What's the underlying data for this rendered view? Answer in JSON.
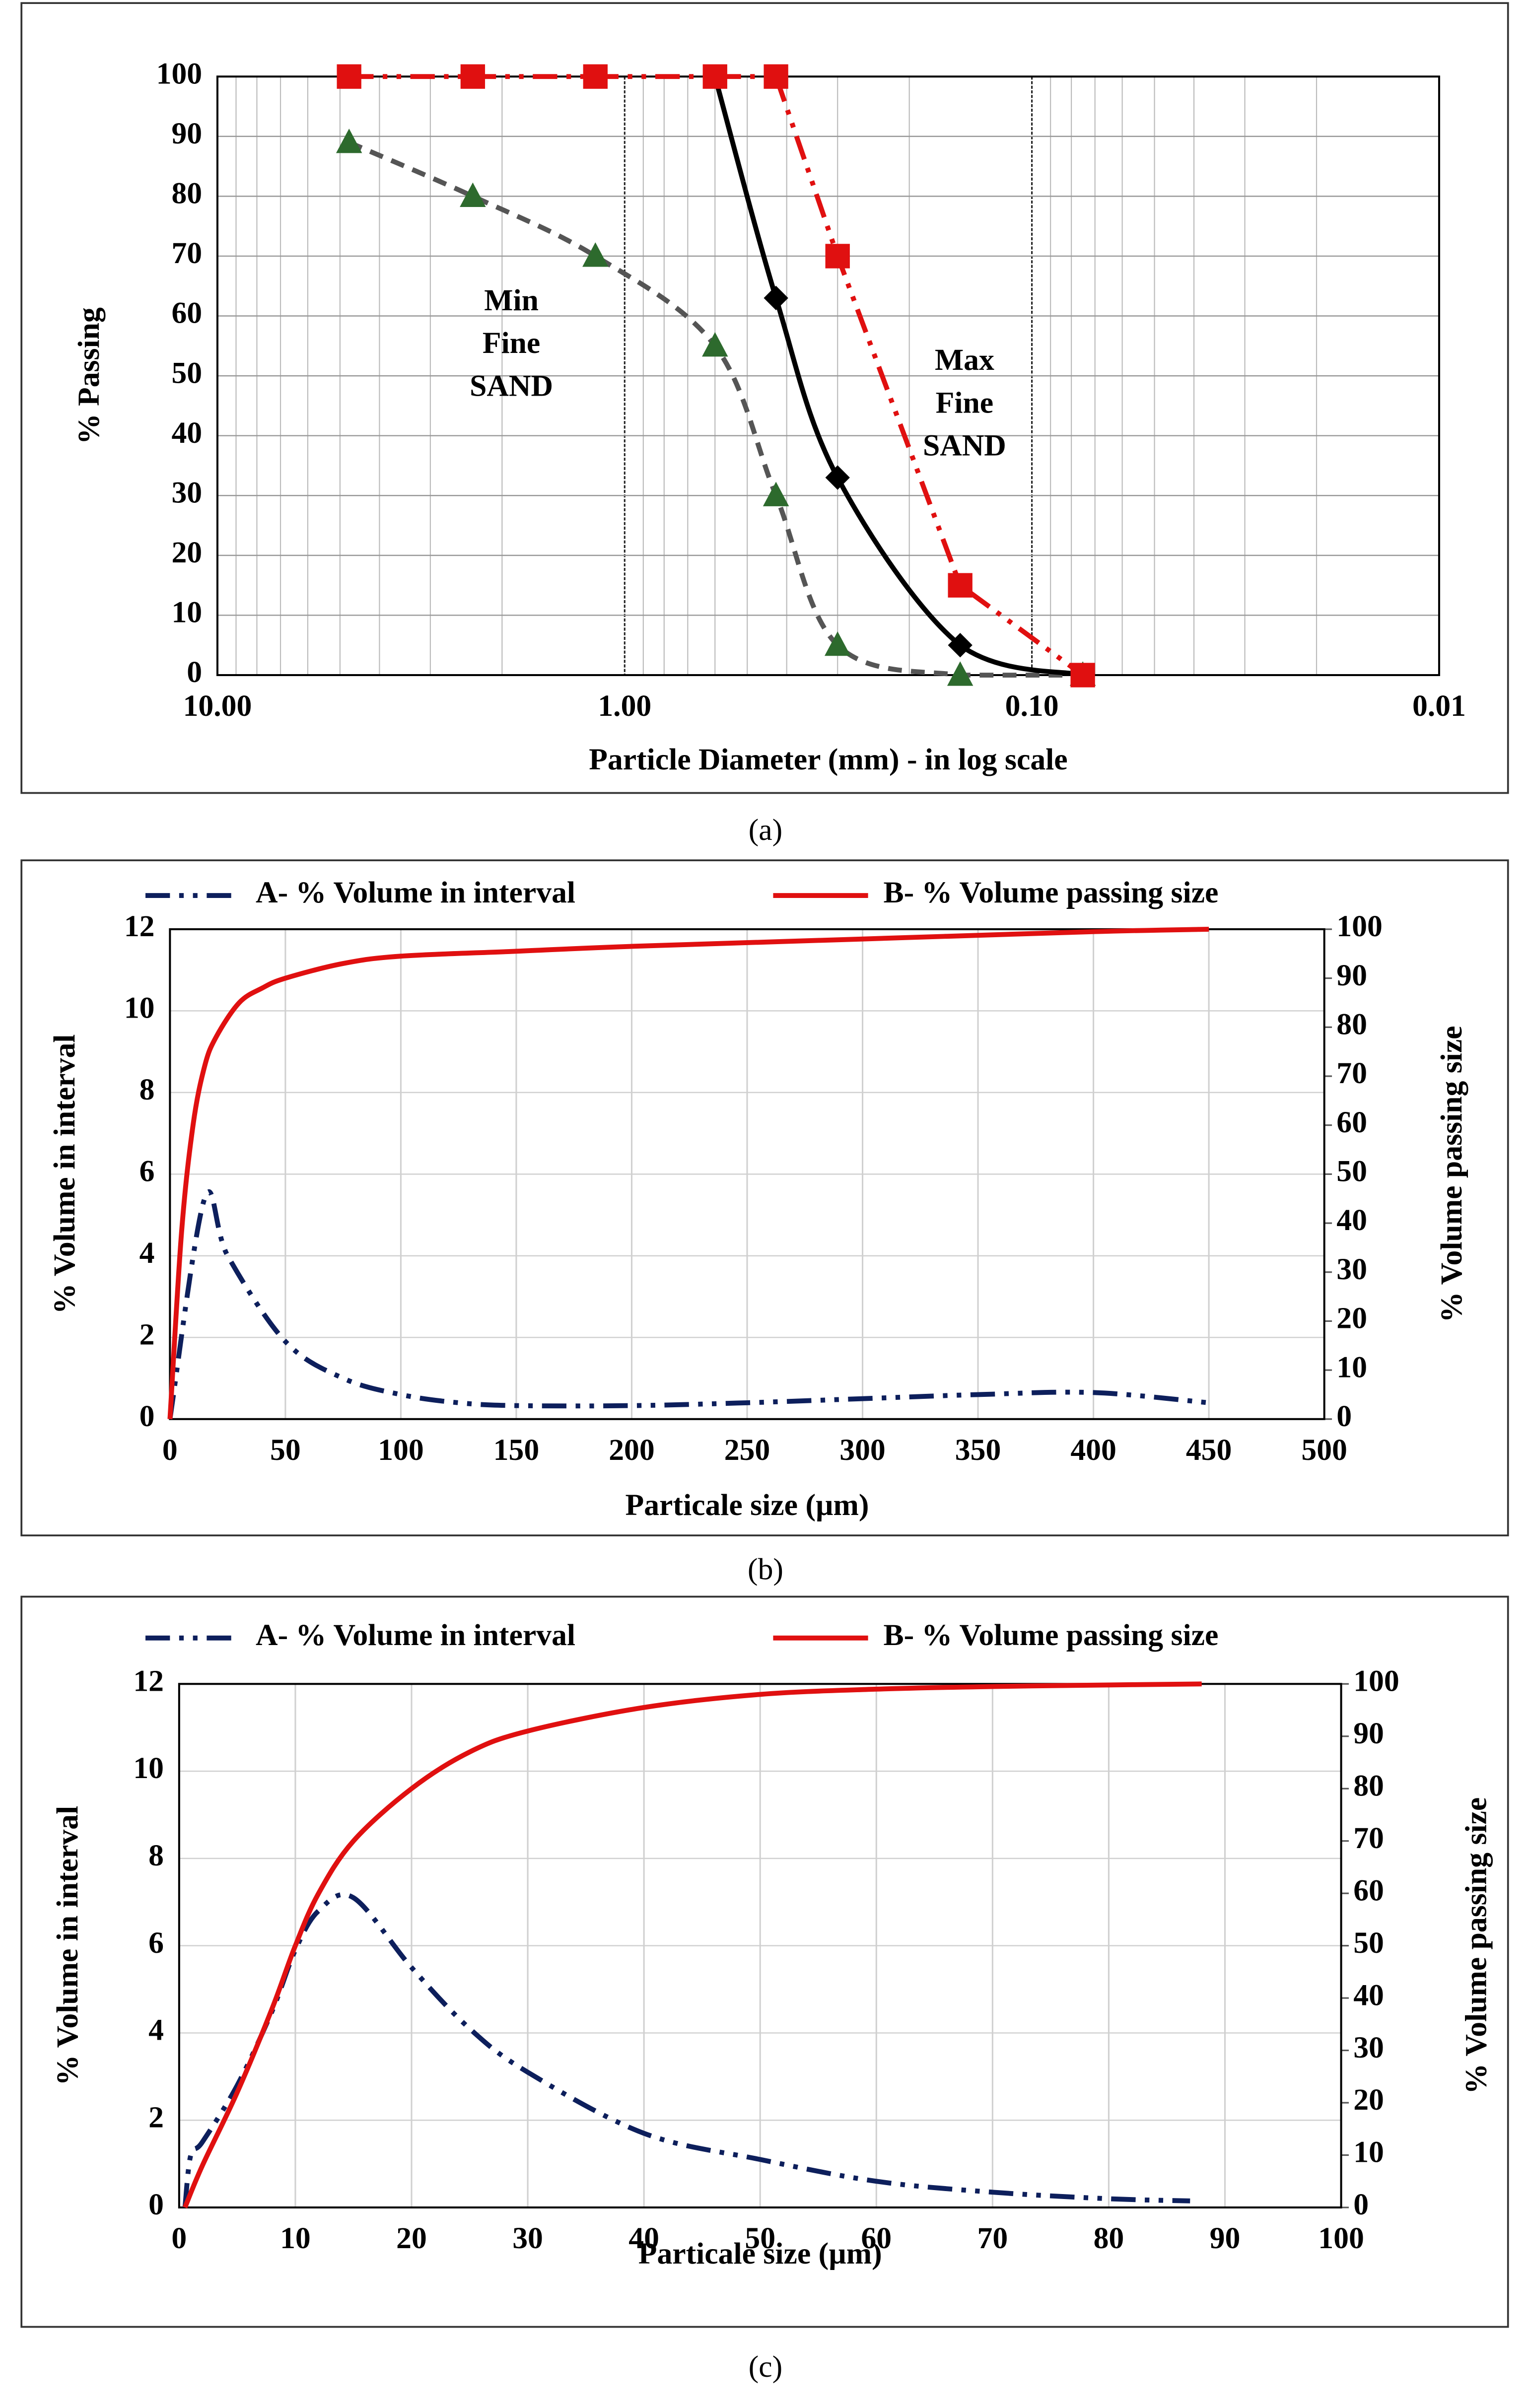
{
  "chart_data": [
    {
      "type": "line",
      "caption": "(a)",
      "xscale": "log",
      "xlabel": "Particle Diameter (mm) - in log scale",
      "ylabel": "% Passing",
      "xlim": [
        10,
        0.01
      ],
      "xticks": [
        {
          "value": 10,
          "label": "10.00"
        },
        {
          "value": 1,
          "label": "1.00"
        },
        {
          "value": 0.1,
          "label": "0.10"
        },
        {
          "value": 0.01,
          "label": "0.01"
        }
      ],
      "xminor": [
        9,
        8,
        7,
        6,
        5,
        4,
        3,
        2,
        0.9,
        0.8,
        0.7,
        0.6,
        0.5,
        0.4,
        0.3,
        0.2,
        0.09,
        0.08,
        0.07,
        0.06,
        0.05,
        0.04,
        0.03,
        0.02
      ],
      "ylim": [
        0,
        100
      ],
      "yticks": [
        0,
        10,
        20,
        30,
        40,
        50,
        60,
        70,
        80,
        90,
        100
      ],
      "grid": true,
      "x": [
        4.75,
        2.36,
        1.18,
        0.6,
        0.425,
        0.3,
        0.15,
        0.075
      ],
      "series": [
        {
          "color": "#555555",
          "marker": "triangle",
          "marker_color": "#2d6a2d",
          "linestyle": "dashed",
          "smooth": true,
          "values": [
            89,
            80,
            70,
            55,
            30,
            5,
            0,
            0
          ]
        },
        {
          "color": "#000000",
          "marker": "diamond",
          "marker_color": "#000000",
          "linestyle": "solid",
          "smooth": true,
          "values": [
            null,
            null,
            null,
            100,
            63,
            33,
            5,
            0
          ]
        },
        {
          "color": "#e01010",
          "marker": "square",
          "marker_color": "#e01010",
          "linestyle": "dashdot",
          "smooth": false,
          "values": [
            100,
            100,
            100,
            100,
            100,
            70,
            15,
            0
          ]
        }
      ],
      "annotations": [
        {
          "lines": [
            "Min",
            "Fine",
            "SAND"
          ]
        },
        {
          "lines": [
            "Max",
            "Fine",
            "SAND"
          ]
        }
      ]
    },
    {
      "type": "line",
      "caption": "(b)",
      "legend": "top",
      "xlabel": "Particale size (µm)",
      "ylabel": "% Volume in interval",
      "y2label": "% Volume passing size",
      "xlim": [
        0,
        500
      ],
      "xticks": [
        0,
        50,
        100,
        150,
        200,
        250,
        300,
        350,
        400,
        450,
        500
      ],
      "ylim": [
        0,
        12
      ],
      "yticks": [
        0,
        2,
        4,
        6,
        8,
        10,
        12
      ],
      "y2lim": [
        0,
        100
      ],
      "y2ticks": [
        0,
        10,
        20,
        30,
        40,
        50,
        60,
        70,
        80,
        90,
        100
      ],
      "grid": true,
      "series": [
        {
          "name": "A- % Volume in interval",
          "color": "#0d1f5c",
          "linestyle": "dashdot",
          "smooth": true,
          "x": [
            0,
            15,
            25,
            50,
            75,
            100,
            125,
            150,
            200,
            250,
            300,
            350,
            400,
            450
          ],
          "values": [
            0,
            5.4,
            4,
            1.9,
            1.0,
            0.6,
            0.4,
            0.33,
            0.33,
            0.4,
            0.5,
            0.6,
            0.65,
            0.4
          ]
        },
        {
          "name": "B- % Volume passing size",
          "color": "#e01010",
          "linestyle": "solid",
          "smooth": true,
          "axis": "y2",
          "x": [
            0,
            5,
            10,
            15,
            20,
            30,
            40,
            50,
            75,
            100,
            150,
            200,
            300,
            400,
            450
          ],
          "values": [
            0,
            38,
            60,
            72,
            78,
            85,
            88,
            90,
            93,
            94.5,
            95.5,
            96.5,
            98,
            99.5,
            100
          ]
        }
      ]
    },
    {
      "type": "line",
      "caption": "(c)",
      "legend": "top",
      "xlabel": "Particale size (µm)",
      "ylabel": "% Volume in interval",
      "y2label": "% Volume passing size",
      "xlim": [
        0,
        100
      ],
      "xticks": [
        0,
        10,
        20,
        30,
        40,
        50,
        60,
        70,
        80,
        90,
        100
      ],
      "ylim": [
        0,
        12
      ],
      "yticks": [
        0,
        2,
        4,
        6,
        8,
        10,
        12
      ],
      "y2lim": [
        0,
        100
      ],
      "y2ticks": [
        0,
        10,
        20,
        30,
        40,
        50,
        60,
        70,
        80,
        90,
        100
      ],
      "grid": true,
      "series": [
        {
          "name": "A- % Volume in interval",
          "color": "#0d1f5c",
          "linestyle": "dashdot",
          "smooth": true,
          "x": [
            0.5,
            1,
            2,
            5,
            8,
            10,
            12,
            15,
            20,
            25,
            30,
            40,
            50,
            60,
            70,
            80,
            87
          ],
          "values": [
            0,
            1.2,
            1.5,
            2.8,
            4.5,
            5.9,
            6.8,
            7.1,
            5.5,
            4.1,
            3.1,
            1.7,
            1.1,
            0.6,
            0.35,
            0.2,
            0.15
          ]
        },
        {
          "name": "B- % Volume passing size",
          "color": "#e01010",
          "linestyle": "solid",
          "smooth": true,
          "axis": "y2",
          "x": [
            0.5,
            2,
            5,
            8,
            10,
            12,
            15,
            20,
            25,
            30,
            40,
            50,
            60,
            70,
            80,
            88
          ],
          "values": [
            0,
            8,
            22,
            38,
            50,
            60,
            70,
            80,
            87,
            91,
            95.5,
            98,
            99,
            99.5,
            99.8,
            100
          ]
        }
      ]
    }
  ]
}
